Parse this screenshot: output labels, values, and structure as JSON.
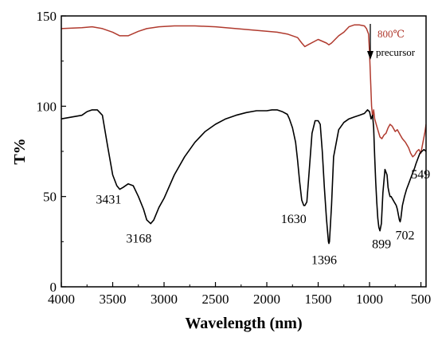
{
  "chart_data": {
    "type": "line",
    "xlabel": "Wavelength (nm)",
    "ylabel": "T%",
    "xlim": [
      4000,
      450
    ],
    "ylim": [
      0,
      150
    ],
    "x_reversed": true,
    "x_ticks": [
      4000,
      3500,
      3000,
      2500,
      2000,
      1500,
      1000,
      500
    ],
    "y_ticks": [
      0,
      50,
      100,
      150
    ],
    "grid": false,
    "legend": [
      {
        "label": "800℃",
        "color": "#b03a2e"
      },
      {
        "label": "precursor",
        "color": "#000000"
      }
    ],
    "series": [
      {
        "name": "800℃",
        "color": "#b03a2e",
        "x": [
          4000,
          3800,
          3700,
          3600,
          3500,
          3431,
          3350,
          3250,
          3168,
          3050,
          2900,
          2700,
          2500,
          2300,
          2100,
          1900,
          1800,
          1700,
          1660,
          1630,
          1600,
          1500,
          1420,
          1396,
          1370,
          1300,
          1250,
          1200,
          1150,
          1100,
          1050,
          1030,
          1010,
          1000,
          990,
          980,
          970,
          960,
          950,
          935,
          920,
          899,
          880,
          860,
          840,
          820,
          800,
          780,
          750,
          730,
          700,
          680,
          650,
          620,
          600,
          580,
          560,
          540,
          520,
          500,
          480,
          460,
          450
        ],
        "y": [
          143,
          143.5,
          144,
          143,
          141,
          139,
          139,
          141.5,
          143,
          144,
          144.5,
          144.5,
          144,
          143,
          142,
          141,
          140,
          138,
          135,
          133,
          134,
          137,
          135,
          134,
          135,
          139,
          141,
          144,
          145,
          145,
          144.5,
          143,
          140,
          130,
          115,
          100,
          94,
          98,
          93,
          90,
          87,
          83,
          82,
          84,
          85,
          88,
          90,
          89,
          86,
          87,
          84,
          82,
          80,
          77,
          74,
          72,
          73,
          75,
          76,
          74,
          80,
          86,
          90
        ]
      },
      {
        "name": "precursor",
        "color": "#000000",
        "x": [
          4000,
          3900,
          3800,
          3750,
          3700,
          3650,
          3600,
          3550,
          3500,
          3460,
          3431,
          3400,
          3350,
          3300,
          3250,
          3200,
          3168,
          3130,
          3100,
          3050,
          3000,
          2900,
          2800,
          2700,
          2600,
          2500,
          2400,
          2300,
          2200,
          2100,
          2000,
          1950,
          1900,
          1850,
          1800,
          1780,
          1750,
          1720,
          1700,
          1680,
          1660,
          1640,
          1630,
          1610,
          1590,
          1560,
          1530,
          1500,
          1480,
          1460,
          1440,
          1420,
          1400,
          1396,
          1390,
          1370,
          1350,
          1300,
          1250,
          1200,
          1150,
          1100,
          1050,
          1020,
          1000,
          985,
          970,
          960,
          950,
          940,
          930,
          920,
          910,
          899,
          885,
          870,
          850,
          830,
          820,
          810,
          800,
          790,
          780,
          770,
          760,
          750,
          740,
          730,
          720,
          710,
          702,
          695,
          680,
          660,
          640,
          620,
          600,
          580,
          560,
          549,
          530,
          510,
          490,
          470,
          450
        ],
        "y": [
          93,
          94,
          95,
          97,
          98,
          98,
          95,
          78,
          62,
          56,
          54,
          55,
          57,
          56,
          50,
          43,
          37,
          35,
          37,
          44,
          49,
          62,
          72,
          80,
          86,
          90,
          93,
          95,
          96.5,
          97.5,
          97.5,
          98,
          98,
          97,
          95.5,
          93,
          88,
          80,
          70,
          58,
          48,
          45,
          45,
          47,
          62,
          85,
          92,
          92,
          90,
          75,
          55,
          38,
          25,
          24,
          25,
          45,
          72,
          87,
          91,
          93,
          94,
          95,
          96,
          98,
          97,
          93,
          95,
          88,
          72,
          58,
          47,
          38,
          33,
          31,
          35,
          52,
          65,
          62,
          55,
          52,
          50,
          50,
          49,
          48,
          47,
          46,
          45,
          43,
          40,
          37,
          36,
          38,
          45,
          50,
          54,
          57,
          60,
          63,
          66,
          68,
          71,
          74,
          75,
          76,
          75
        ]
      }
    ],
    "annotations": [
      {
        "text": "3431",
        "x": 3431,
        "y": 54
      },
      {
        "text": "3168",
        "x": 3168,
        "y": 35
      },
      {
        "text": "1630",
        "x": 1630,
        "y": 45
      },
      {
        "text": "1396",
        "x": 1396,
        "y": 24
      },
      {
        "text": "899",
        "x": 899,
        "y": 31
      },
      {
        "text": "702",
        "x": 702,
        "y": 36
      },
      {
        "text": "549",
        "x": 549,
        "y": 68
      }
    ]
  }
}
